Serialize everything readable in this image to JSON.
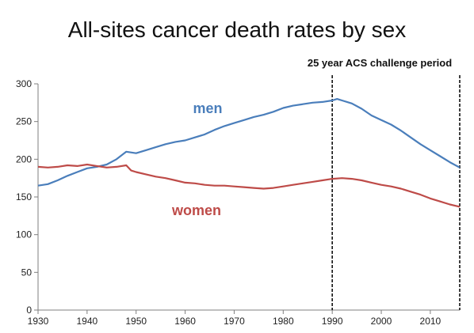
{
  "chart_data": {
    "type": "line",
    "title": "All-sites cancer death rates by sex",
    "xlabel": "",
    "ylabel": "",
    "xlim": [
      1930,
      2016
    ],
    "ylim": [
      0,
      300
    ],
    "xticks": [
      1930,
      1940,
      1950,
      1960,
      1970,
      1980,
      1990,
      2000,
      2010
    ],
    "yticks": [
      0,
      50,
      100,
      150,
      200,
      250,
      300
    ],
    "grid": false,
    "colors": {
      "men": "#4a7ebb",
      "women": "#be4b48"
    },
    "series": [
      {
        "name": "men",
        "x": [
          1930,
          1932,
          1934,
          1936,
          1938,
          1940,
          1942,
          1944,
          1946,
          1948,
          1950,
          1952,
          1954,
          1956,
          1958,
          1960,
          1962,
          1964,
          1966,
          1968,
          1970,
          1972,
          1974,
          1976,
          1978,
          1980,
          1982,
          1984,
          1986,
          1988,
          1990,
          1991,
          1992,
          1994,
          1996,
          1998,
          2000,
          2002,
          2004,
          2006,
          2008,
          2010,
          2012,
          2014,
          2016
        ],
        "values": [
          165,
          167,
          172,
          178,
          183,
          188,
          190,
          193,
          200,
          210,
          208,
          212,
          216,
          220,
          223,
          225,
          229,
          233,
          239,
          244,
          248,
          252,
          256,
          259,
          263,
          268,
          271,
          273,
          275,
          276,
          278,
          280,
          278,
          274,
          267,
          258,
          252,
          246,
          238,
          229,
          220,
          212,
          204,
          196,
          189
        ]
      },
      {
        "name": "women",
        "x": [
          1930,
          1932,
          1934,
          1936,
          1938,
          1940,
          1942,
          1944,
          1946,
          1948,
          1949,
          1950,
          1952,
          1954,
          1956,
          1958,
          1960,
          1962,
          1964,
          1966,
          1968,
          1970,
          1972,
          1974,
          1976,
          1978,
          1980,
          1982,
          1984,
          1986,
          1988,
          1990,
          1992,
          1994,
          1996,
          1998,
          2000,
          2002,
          2004,
          2006,
          2008,
          2010,
          2012,
          2014,
          2016
        ],
        "values": [
          190,
          189,
          190,
          192,
          191,
          193,
          191,
          189,
          190,
          192,
          185,
          183,
          180,
          177,
          175,
          172,
          169,
          168,
          166,
          165,
          165,
          164,
          163,
          162,
          161,
          162,
          164,
          166,
          168,
          170,
          172,
          174,
          175,
          174,
          172,
          169,
          166,
          164,
          161,
          157,
          153,
          148,
          144,
          140,
          137
        ]
      }
    ],
    "annotations": [
      {
        "text": "men",
        "series": "men"
      },
      {
        "text": "women",
        "series": "women"
      },
      {
        "text": "25 year ACS challenge period"
      }
    ],
    "vlines": [
      1990,
      2016
    ]
  }
}
